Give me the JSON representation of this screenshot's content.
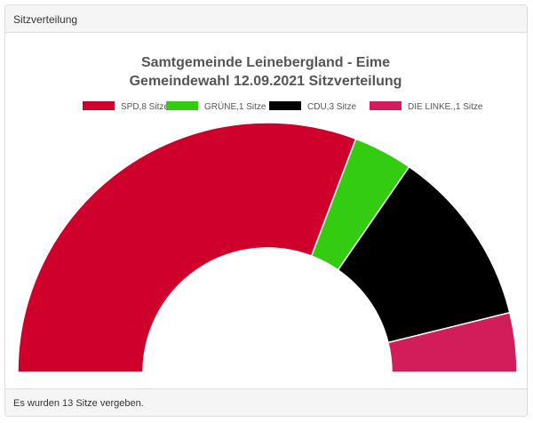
{
  "panel": {
    "heading": "Sitzverteilung",
    "footer": "Es wurden 13 Sitze vergeben."
  },
  "chart_data": {
    "type": "pie",
    "variant": "half-doughnut",
    "title_lines": [
      "Samtgemeinde Leinebergland - Eime",
      "Gemeindewahl 12.09.2021 Sitzverteilung"
    ],
    "legend_position": "top",
    "categories": [
      "SPD",
      "GRÜNE",
      "CDU",
      "DIE LINKE."
    ],
    "values": [
      8,
      1,
      3,
      1
    ],
    "legend_labels": [
      "SPD,8 Sitze",
      "GRÜNE,1 Sitze",
      "CDU,3 Sitze",
      "DIE LINKE.,1 Sitze"
    ],
    "colors": [
      "#d0002c",
      "#33cc11",
      "#000000",
      "#d11d5a"
    ],
    "total": 13
  }
}
